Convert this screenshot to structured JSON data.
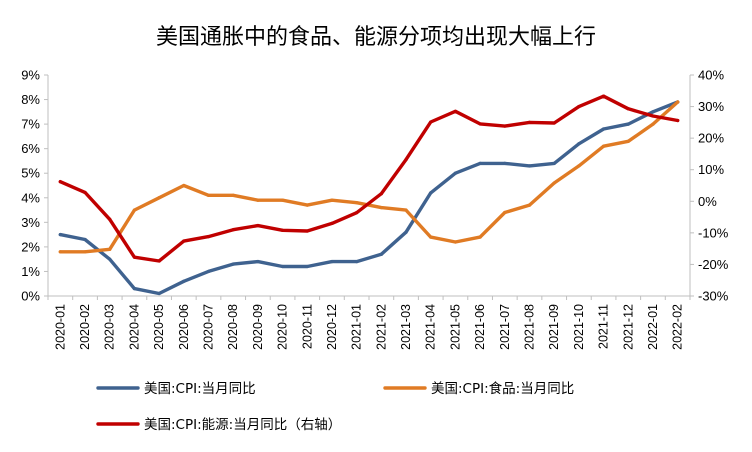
{
  "chart_data": {
    "type": "line",
    "title": "美国通胀中的食品、能源分项均出现大幅上行",
    "x": [
      "2020-01",
      "2020-02",
      "2020-03",
      "2020-04",
      "2020-05",
      "2020-06",
      "2020-07",
      "2020-08",
      "2020-09",
      "2020-10",
      "2020-11",
      "2020-12",
      "2021-01",
      "2021-02",
      "2021-03",
      "2021-04",
      "2021-05",
      "2021-06",
      "2021-07",
      "2021-08",
      "2021-09",
      "2021-10",
      "2021-11",
      "2021-12",
      "2022-01",
      "2022-02"
    ],
    "y_left": {
      "ylim": [
        0,
        9
      ],
      "ticks": [
        0,
        1,
        2,
        3,
        4,
        5,
        6,
        7,
        8,
        9
      ],
      "tick_labels": [
        "0%",
        "1%",
        "2%",
        "3%",
        "4%",
        "5%",
        "6%",
        "7%",
        "8%",
        "9%"
      ]
    },
    "y_right": {
      "ylim": [
        -30,
        40
      ],
      "ticks": [
        -30,
        -20,
        -10,
        0,
        10,
        20,
        30,
        40
      ],
      "tick_labels": [
        "-30%",
        "-20%",
        "-10%",
        "0%",
        "10%",
        "20%",
        "30%",
        "40%"
      ]
    },
    "series": [
      {
        "name": "美国:CPI:当月同比",
        "axis": "left",
        "color": "#3f628f",
        "values": [
          2.5,
          2.3,
          1.5,
          0.3,
          0.1,
          0.6,
          1.0,
          1.3,
          1.4,
          1.2,
          1.2,
          1.4,
          1.4,
          1.7,
          2.6,
          4.2,
          5.0,
          5.4,
          5.4,
          5.3,
          5.4,
          6.2,
          6.8,
          7.0,
          7.5,
          7.9
        ]
      },
      {
        "name": "美国:CPI:食品:当月同比",
        "axis": "left",
        "color": "#e07b24",
        "values": [
          1.8,
          1.8,
          1.9,
          3.5,
          4.0,
          4.5,
          4.1,
          4.1,
          3.9,
          3.9,
          3.7,
          3.9,
          3.8,
          3.6,
          3.5,
          2.4,
          2.2,
          2.4,
          3.4,
          3.7,
          4.6,
          5.3,
          6.1,
          6.3,
          7.0,
          7.9
        ]
      },
      {
        "name": "美国:CPI:能源:当月同比（右轴）",
        "axis": "right",
        "color": "#c00000",
        "values": [
          6.2,
          2.8,
          -5.7,
          -17.7,
          -18.9,
          -12.6,
          -11.2,
          -9.0,
          -7.7,
          -9.2,
          -9.4,
          -7.0,
          -3.6,
          2.4,
          13.2,
          25.1,
          28.5,
          24.5,
          23.8,
          25.0,
          24.8,
          30.0,
          33.3,
          29.3,
          27.0,
          25.6
        ]
      }
    ],
    "legend": "bottom",
    "grid": false
  }
}
